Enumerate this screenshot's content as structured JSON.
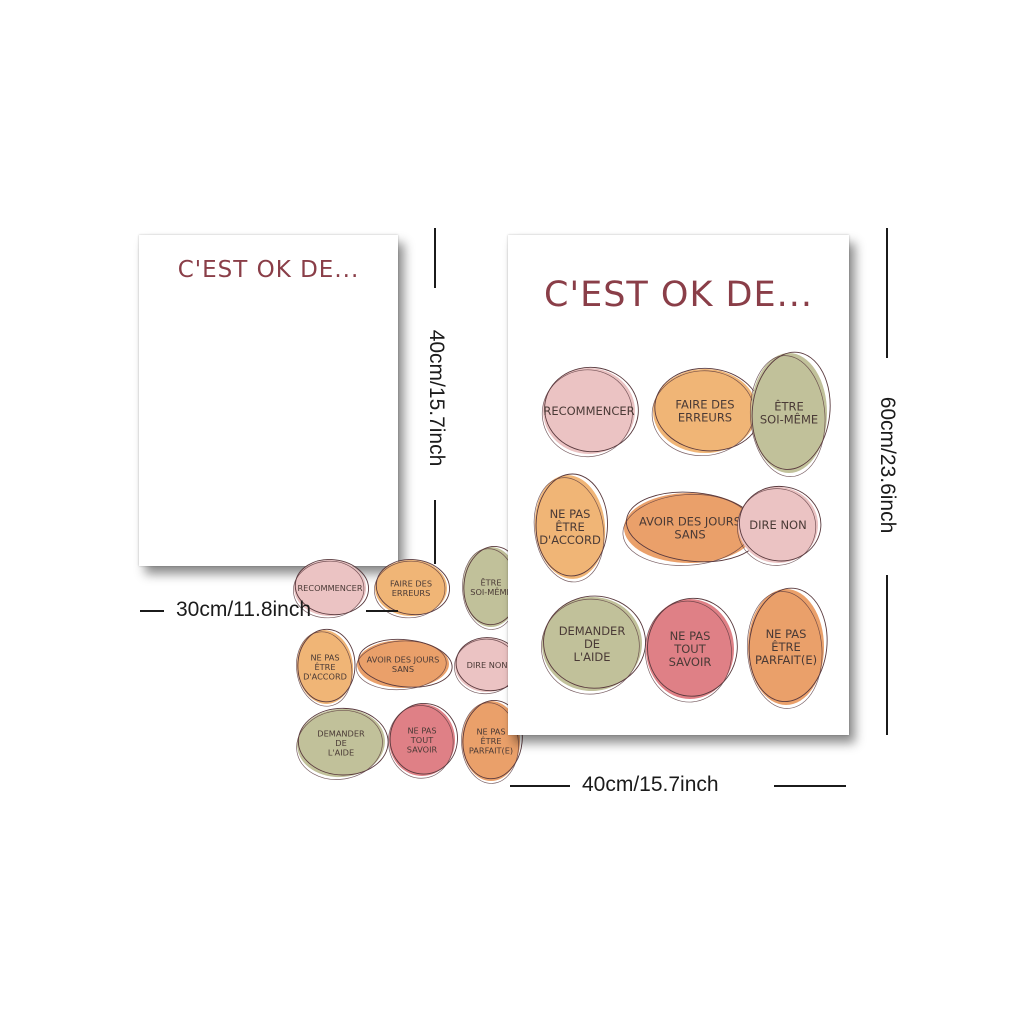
{
  "title": "C'EST OK DE...",
  "colors": {
    "title": "#8a3e48",
    "text": "#4a3a36",
    "outline": "#5a3a3e",
    "pink_light": "#ebc3c3",
    "orange_light": "#f0b576",
    "sage": "#c1c19a",
    "orange": "#eaa06a",
    "pink_dark": "#df8086"
  },
  "blobs": [
    {
      "label": [
        "RECOMMENCER"
      ],
      "color": "pink_light"
    },
    {
      "label": [
        "FAIRE DES",
        "ERREURS"
      ],
      "color": "orange_light"
    },
    {
      "label": [
        "ÊTRE",
        "SOI-MÊME"
      ],
      "color": "sage"
    },
    {
      "label": [
        "NE PAS",
        "ÊTRE",
        "D'ACCORD"
      ],
      "color": "orange_light"
    },
    {
      "label": [
        "AVOIR DES JOURS",
        "SANS"
      ],
      "color": "orange"
    },
    {
      "label": [
        "DIRE NON"
      ],
      "color": "pink_light"
    },
    {
      "label": [
        "DEMANDER",
        "DE",
        "L'AIDE"
      ],
      "color": "sage"
    },
    {
      "label": [
        "NE PAS",
        "TOUT",
        "SAVOIR"
      ],
      "color": "pink_dark"
    },
    {
      "label": [
        "NE PAS",
        "ÊTRE",
        "PARFAIT(E)"
      ],
      "color": "orange"
    }
  ],
  "dimensions": {
    "small_width": "30cm/11.8inch",
    "small_height": "40cm/15.7inch",
    "large_width": "40cm/15.7inch",
    "large_height": "60cm/23.6inch"
  }
}
